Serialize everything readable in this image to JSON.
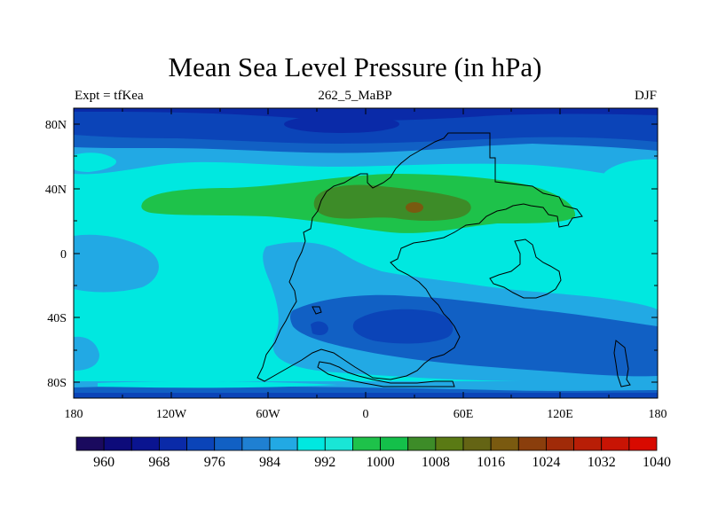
{
  "title": "Mean Sea Level Pressure (in hPa)",
  "subtitle_left": "Expt = tfKea",
  "subtitle_center": "262_5_MaBP",
  "subtitle_right": "DJF",
  "axes": {
    "x_ticks": [
      "180",
      "120W",
      "60W",
      "0",
      "60E",
      "120E",
      "180"
    ],
    "y_ticks": [
      "80N",
      "40N",
      "0",
      "40S",
      "80S"
    ]
  },
  "colorbar": {
    "colors": [
      "#1a0a5e",
      "#0d0b7a",
      "#0a1490",
      "#0a2aa8",
      "#0b44b8",
      "#1160c4",
      "#1f80d2",
      "#22a9e4",
      "#00e8e0",
      "#19e6d6",
      "#1ec24a",
      "#14c04a",
      "#3d8c28",
      "#5a7a14",
      "#646414",
      "#7a5a10",
      "#8a3e0c",
      "#a02a08",
      "#b81e06",
      "#c81404",
      "#d80a00"
    ],
    "labels": [
      "960",
      "968",
      "976",
      "984",
      "992",
      "1000",
      "1008",
      "1016",
      "1024",
      "1032",
      "1040"
    ]
  },
  "map_colors": {
    "level_976": "#0a2aa8",
    "level_984": "#0b44b8",
    "level_988": "#1160c4",
    "level_996": "#22a9e4",
    "level_1000": "#00e8e0",
    "level_1008": "#1ec24a",
    "level_1012": "#3d8c28",
    "level_1020": "#7a5a10",
    "coast": "#000000"
  }
}
